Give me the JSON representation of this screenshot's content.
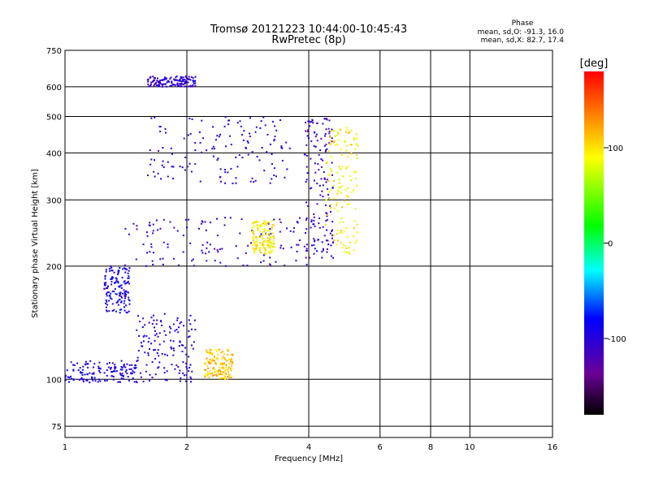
{
  "chart_data": {
    "type": "scatter",
    "title": "Tromsø 20121223 10:44:00-10:45:43",
    "subtitle": "RwPretec (8p)",
    "xlabel": "Frequency [MHz]",
    "ylabel": "Stationary phase Virtual Height [km]",
    "xscale": "log",
    "yscale": "log",
    "xlim": [
      1,
      16
    ],
    "ylim": [
      70,
      750
    ],
    "xticks": [
      "1",
      "2",
      "4",
      "6",
      "8",
      "10",
      "16"
    ],
    "xtick_values": [
      1,
      2,
      4,
      6,
      8,
      10,
      16
    ],
    "yticks": [
      "75",
      "100",
      "200",
      "300",
      "400",
      "500",
      "600",
      "750"
    ],
    "ytick_values": [
      75,
      100,
      200,
      300,
      400,
      500,
      600,
      750
    ],
    "grid": true,
    "stats": {
      "header": "Phase",
      "line_o": "mean, sd,O: -91.3, 16.0",
      "line_x": "mean, sd,X:  82.7, 17.4"
    },
    "colorbar": {
      "label": "[deg]",
      "range": [
        -180,
        180
      ],
      "ticks": [
        "100",
        "0",
        "-100"
      ],
      "tick_values": [
        100,
        0,
        -100
      ],
      "colors": [
        "#000000",
        "#6a0096",
        "#0000ff",
        "#00ffff",
        "#00ff00",
        "#ffff00",
        "#ff0000"
      ]
    },
    "series": [
      {
        "freq_range": [
          1.0,
          1.5
        ],
        "height_range": [
          98,
          112
        ],
        "phase": -95
      },
      {
        "freq_range": [
          1.5,
          2.1
        ],
        "height_range": [
          98,
          150
        ],
        "phase": -100
      },
      {
        "freq_range": [
          1.25,
          1.45
        ],
        "height_range": [
          150,
          200
        ],
        "phase": -90
      },
      {
        "freq_range": [
          1.4,
          4.6
        ],
        "height_range": [
          200,
          270
        ],
        "phase": -105
      },
      {
        "freq_range": [
          1.6,
          3.6
        ],
        "height_range": [
          330,
          500
        ],
        "phase": -100
      },
      {
        "freq_range": [
          3.9,
          4.6
        ],
        "height_range": [
          210,
          500
        ],
        "phase": -110
      },
      {
        "freq_range": [
          4.4,
          5.3
        ],
        "height_range": [
          215,
          470
        ],
        "phase": 95
      },
      {
        "freq_range": [
          2.9,
          3.3
        ],
        "height_range": [
          215,
          265
        ],
        "phase": 95
      },
      {
        "freq_range": [
          2.2,
          2.6
        ],
        "height_range": [
          100,
          120
        ],
        "phase": 110
      },
      {
        "freq_range": [
          1.6,
          2.1
        ],
        "height_range": [
          600,
          640
        ],
        "phase": -105
      }
    ]
  }
}
